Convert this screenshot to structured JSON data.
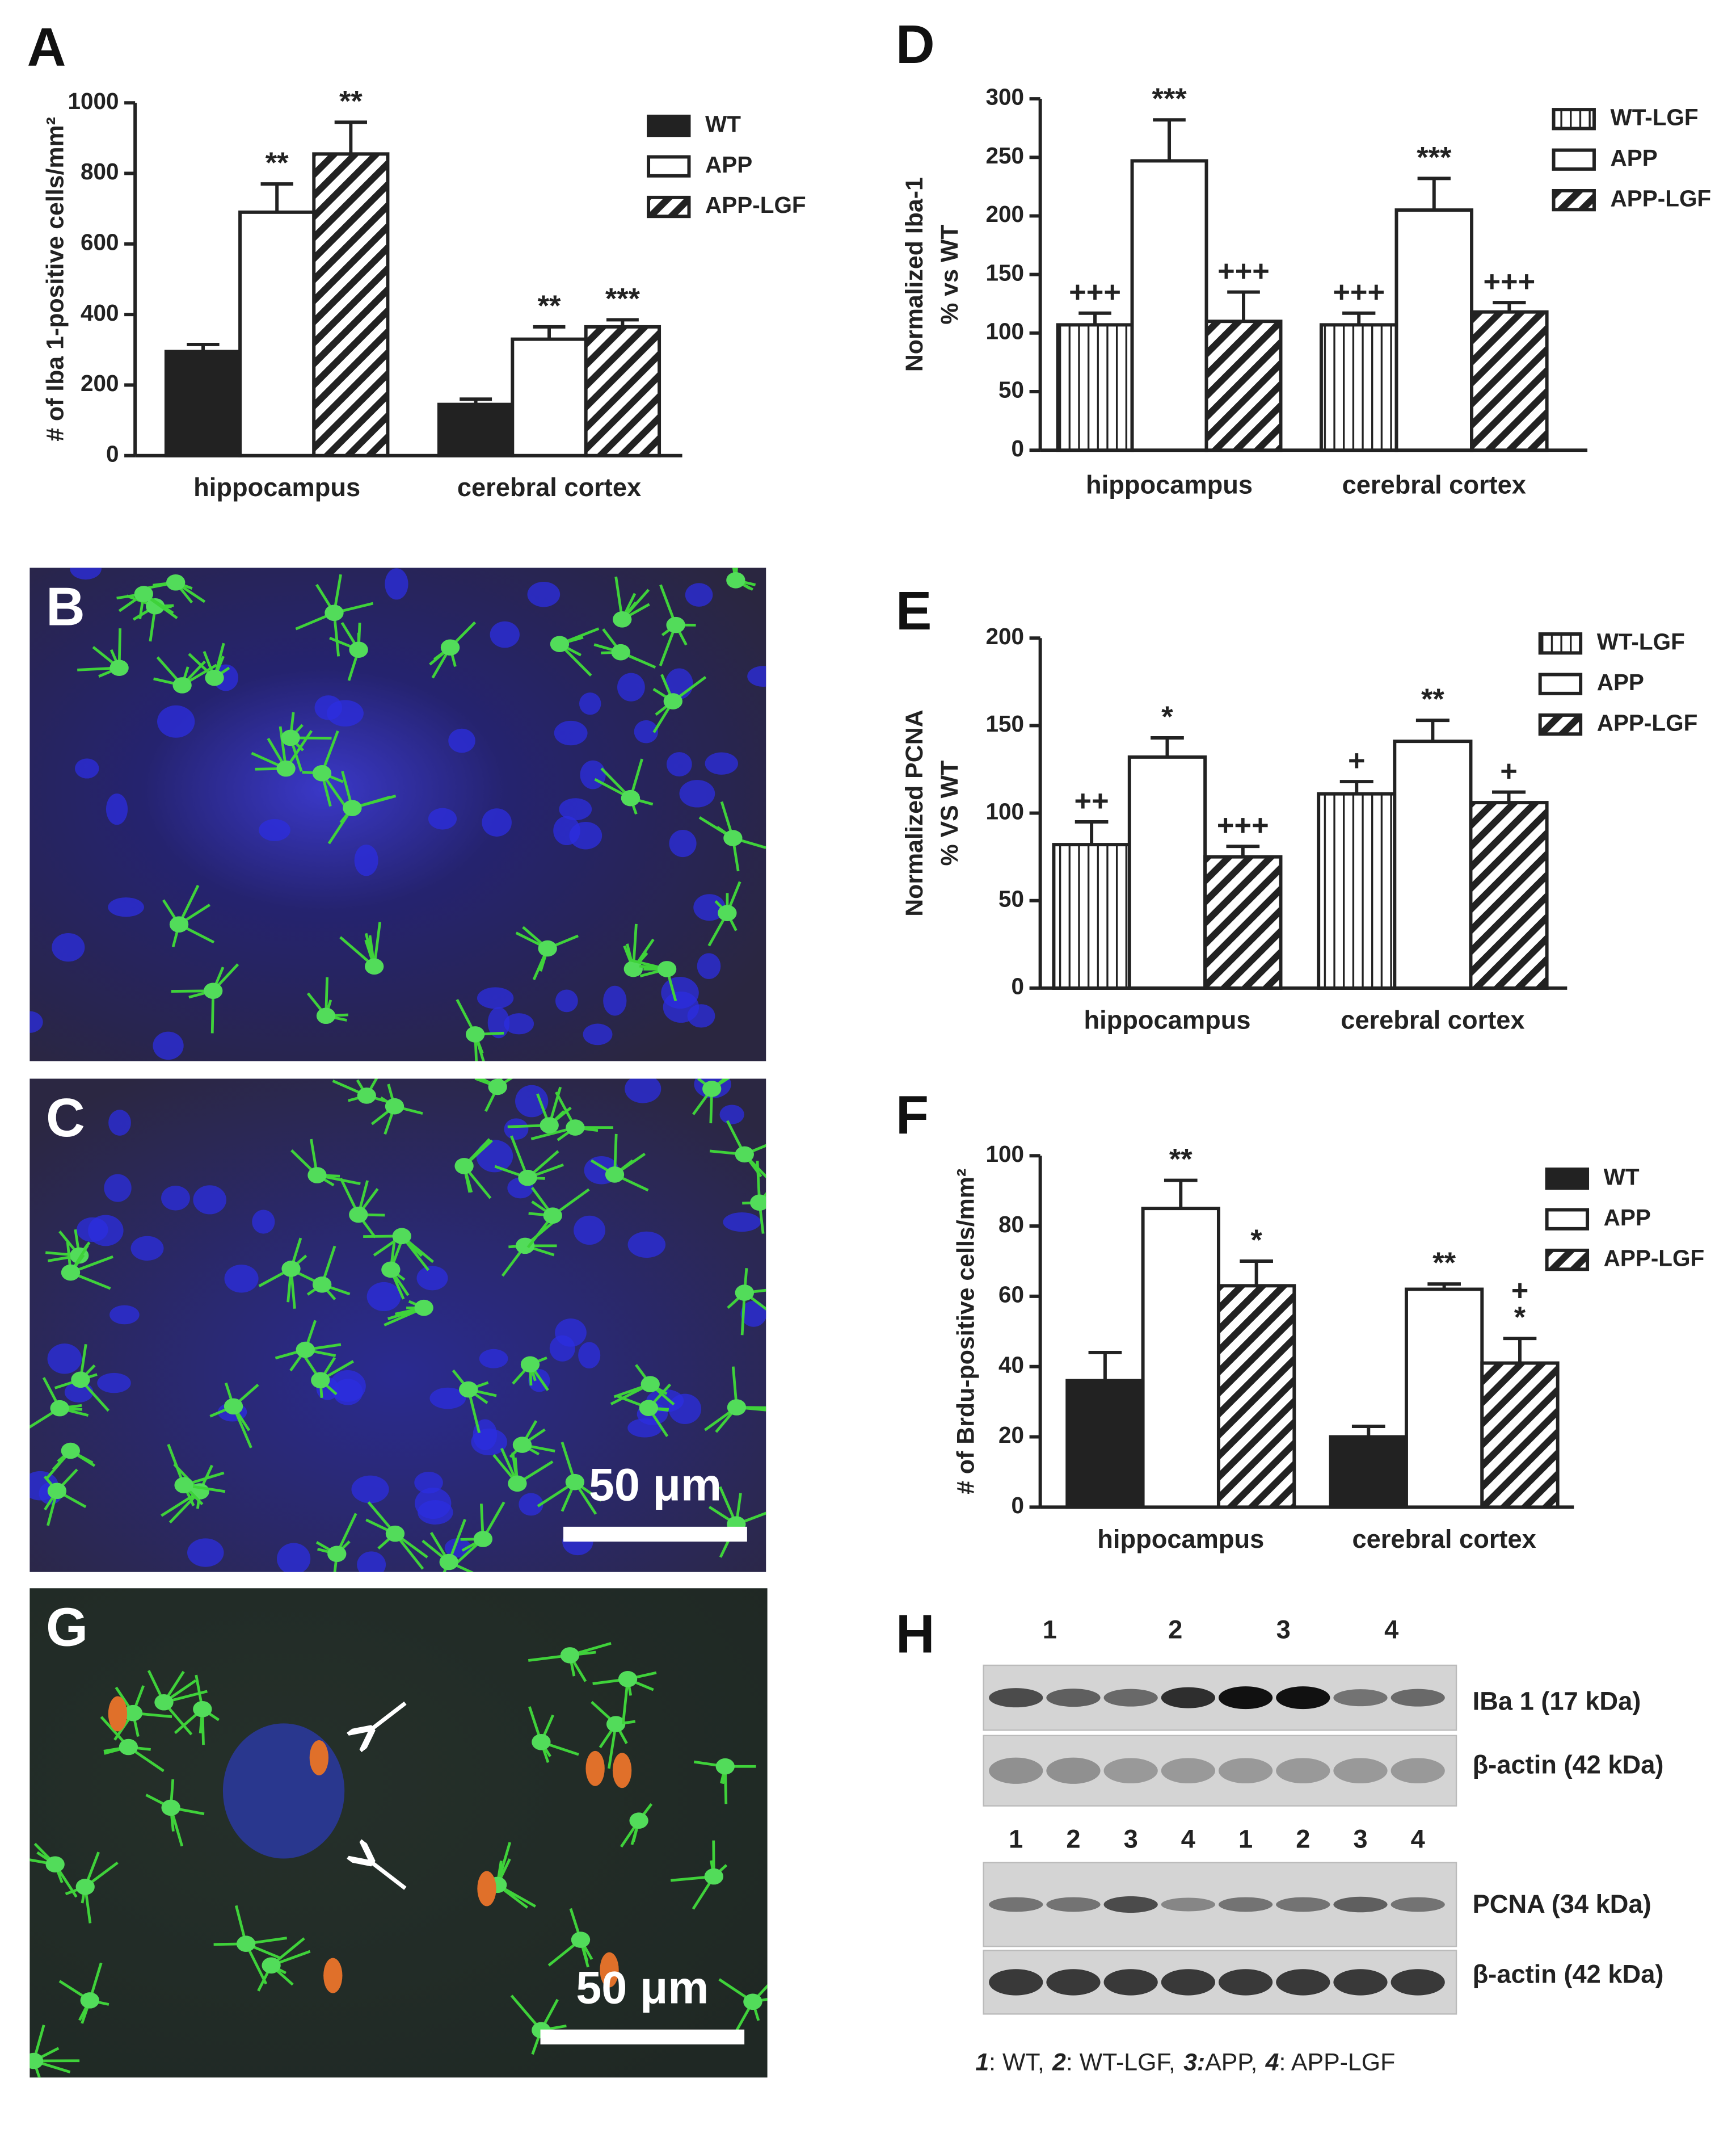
{
  "chart_data": [
    {
      "type": "bar",
      "label": "A",
      "ylabel": [
        "# of Iba 1-positive cells/mm²"
      ],
      "categories": [
        "hippocampus",
        "cerebral cortex"
      ],
      "ylim": [
        0,
        1000
      ],
      "yticks": [
        0,
        200,
        400,
        600,
        800,
        1000
      ],
      "series": [
        {
          "name": "WT",
          "pattern": "solid",
          "color": "#222222",
          "values": [
            295,
            145
          ],
          "errors": [
            20,
            15
          ]
        },
        {
          "name": "APP",
          "pattern": "open",
          "color": "#222222",
          "values": [
            690,
            330
          ],
          "errors": [
            80,
            35
          ],
          "annotations": [
            [
              "**"
            ],
            [
              "**"
            ]
          ]
        },
        {
          "name": "APP-LGF",
          "pattern": "diagonal",
          "color": "#222222",
          "values": [
            855,
            365
          ],
          "errors": [
            90,
            20
          ],
          "annotations": [
            [
              "**"
            ],
            [
              "***"
            ]
          ]
        }
      ]
    },
    {
      "type": "bar",
      "label": "D",
      "ylabel": [
        "Normalized Iba-1",
        "% vs WT"
      ],
      "categories": [
        "hippocampus",
        "cerebral cortex"
      ],
      "ylim": [
        0,
        300
      ],
      "yticks": [
        0,
        50,
        100,
        150,
        200,
        250,
        300
      ],
      "series": [
        {
          "name": "WT-LGF",
          "pattern": "vertical",
          "color": "#222222",
          "values": [
            107,
            107
          ],
          "errors": [
            10,
            10
          ],
          "annotations": [
            [
              "+++"
            ],
            [
              "+++"
            ]
          ]
        },
        {
          "name": "APP",
          "pattern": "open",
          "color": "#222222",
          "values": [
            247,
            205
          ],
          "errors": [
            35,
            27
          ],
          "annotations": [
            [
              "***"
            ],
            [
              "***"
            ]
          ]
        },
        {
          "name": "APP-LGF",
          "pattern": "diagonal",
          "color": "#222222",
          "values": [
            110,
            118
          ],
          "errors": [
            25,
            8
          ],
          "annotations": [
            [
              "+++"
            ],
            [
              "+++"
            ]
          ]
        }
      ]
    },
    {
      "type": "bar",
      "label": "E",
      "ylabel": [
        "Normalized PCNA",
        "% VS WT"
      ],
      "categories": [
        "hippocampus",
        "cerebral cortex"
      ],
      "ylim": [
        0,
        200
      ],
      "yticks": [
        0,
        50,
        100,
        150,
        200
      ],
      "series": [
        {
          "name": "WT-LGF",
          "pattern": "vertical",
          "color": "#222222",
          "values": [
            82,
            111
          ],
          "errors": [
            13,
            7
          ],
          "annotations": [
            [
              "++"
            ],
            [
              "+"
            ]
          ]
        },
        {
          "name": "APP",
          "pattern": "open",
          "color": "#222222",
          "values": [
            132,
            141
          ],
          "errors": [
            11,
            12
          ],
          "annotations": [
            [
              "*"
            ],
            [
              "**"
            ]
          ]
        },
        {
          "name": "APP-LGF",
          "pattern": "diagonal",
          "color": "#222222",
          "values": [
            75,
            106
          ],
          "errors": [
            6,
            6
          ],
          "annotations": [
            [
              "+++"
            ],
            [
              "+"
            ]
          ]
        }
      ]
    },
    {
      "type": "bar",
      "label": "F",
      "ylabel": [
        "# of Brdu-positive cells/mm²"
      ],
      "categories": [
        "hippocampus",
        "cerebral cortex"
      ],
      "ylim": [
        0,
        100
      ],
      "yticks": [
        0,
        20,
        40,
        60,
        80,
        100
      ],
      "series": [
        {
          "name": "WT",
          "pattern": "solid",
          "color": "#222222",
          "values": [
            36,
            20
          ],
          "errors": [
            8,
            3
          ]
        },
        {
          "name": "APP",
          "pattern": "open",
          "color": "#222222",
          "values": [
            85,
            62
          ],
          "errors": [
            8,
            1.5
          ],
          "annotations": [
            [
              "**"
            ],
            [
              "**"
            ]
          ]
        },
        {
          "name": "APP-LGF",
          "pattern": "diagonal",
          "color": "#222222",
          "values": [
            63,
            41
          ],
          "errors": [
            7,
            7
          ],
          "annotations": [
            [
              "*"
            ],
            [
              "+",
              "*"
            ]
          ]
        }
      ]
    }
  ],
  "images": [
    {
      "label": "B"
    },
    {
      "label": "C",
      "scale_bar": "50 μm"
    },
    {
      "label": "G",
      "scale_bar": "50 μm"
    }
  ],
  "blot": {
    "label": "H",
    "lanes_top": [
      "1",
      "2",
      "3",
      "4"
    ],
    "lanes_bottom": [
      "1",
      "2",
      "3",
      "4",
      "1",
      "2",
      "3",
      "4"
    ],
    "bands": [
      "IBa 1 (17 kDa)",
      "β-actin (42 kDa)",
      "PCNA (34 kDa)",
      "β-actin (42 kDa)"
    ],
    "key": [
      {
        "number": "1",
        "text": ": WT,"
      },
      {
        "number": "2",
        "text": ": WT-LGF,"
      },
      {
        "number": "3:",
        "text": "APP,"
      },
      {
        "number": "4",
        "text": ": APP-LGF"
      }
    ]
  }
}
